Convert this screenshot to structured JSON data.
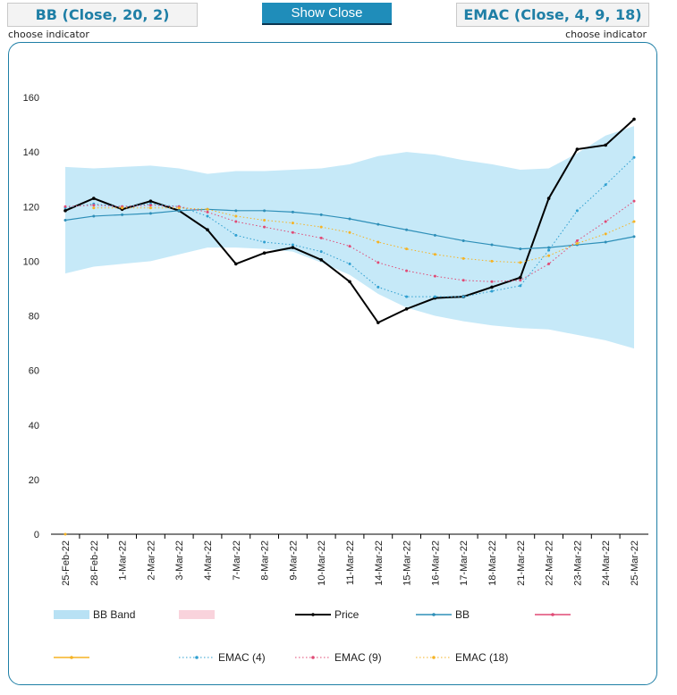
{
  "controls": {
    "left_indicator": "BB (Close, 20, 2)",
    "center_button": "Show Close",
    "right_indicator": "EMAC (Close, 4, 9, 18)",
    "left_hint": "choose indicator",
    "right_hint": "choose indicator"
  },
  "chart_data": {
    "type": "line",
    "title": "",
    "xlabel": "",
    "ylabel": "",
    "ylim": [
      0,
      160
    ],
    "yticks": [
      0,
      20,
      40,
      60,
      80,
      100,
      120,
      140,
      160
    ],
    "grid": false,
    "legend_position": "bottom",
    "categories": [
      "25-Feb-22",
      "28-Feb-22",
      "1-Mar-22",
      "2-Mar-22",
      "3-Mar-22",
      "4-Mar-22",
      "7-Mar-22",
      "8-Mar-22",
      "9-Mar-22",
      "10-Mar-22",
      "11-Mar-22",
      "14-Mar-22",
      "15-Mar-22",
      "16-Mar-22",
      "17-Mar-22",
      "18-Mar-22",
      "21-Mar-22",
      "22-Mar-22",
      "23-Mar-22",
      "24-Mar-22",
      "25-Mar-22"
    ],
    "band": {
      "name": "BB Band",
      "color": "#c6e9f8",
      "upper": [
        134.5,
        134,
        134.5,
        135,
        134,
        132,
        133,
        133,
        133.5,
        134,
        135.5,
        138.5,
        140,
        139,
        137,
        135.5,
        133.5,
        134,
        139.5,
        146,
        149.5
      ],
      "lower": [
        95.5,
        98,
        99,
        100,
        102.5,
        105,
        105,
        104.5,
        103.5,
        99.5,
        95,
        88,
        83,
        80,
        78,
        76.5,
        75.5,
        75,
        73,
        71,
        68
      ]
    },
    "series": [
      {
        "name": "Price",
        "color": "#000000",
        "style": "solid",
        "width": 2,
        "values": [
          118.5,
          123,
          119,
          122,
          118.5,
          111.5,
          99,
          103,
          105,
          100.5,
          92.5,
          77.5,
          82.5,
          86.5,
          87,
          90.5,
          94,
          123,
          141,
          142.5,
          152
        ]
      },
      {
        "name": "BB",
        "color": "#2e8fb8",
        "style": "solid",
        "width": 1.2,
        "values": [
          115,
          116.5,
          117,
          117.5,
          118.5,
          119,
          118.5,
          118.5,
          118,
          117,
          115.5,
          113.5,
          111.5,
          109.5,
          107.5,
          106,
          104.5,
          105,
          106,
          107,
          109
        ]
      },
      {
        "name": "EMAC (4)",
        "color": "#2e9fd0",
        "style": "dotted",
        "width": 1,
        "values": [
          119.5,
          121,
          120,
          121,
          120,
          116.5,
          109.5,
          107,
          106,
          103.5,
          99,
          90.5,
          87,
          87,
          87,
          89,
          91,
          104,
          118.5,
          128,
          138
        ]
      },
      {
        "name": "EMAC (9)",
        "color": "#e04a75",
        "style": "dotted",
        "width": 1,
        "values": [
          120,
          120.5,
          120,
          120.5,
          120,
          118,
          114.5,
          112.5,
          110.5,
          108.5,
          105.5,
          99.5,
          96.5,
          94.5,
          93,
          92.5,
          93,
          99,
          107.5,
          114.5,
          122
        ]
      },
      {
        "name": "EMAC (18)",
        "color": "#f5b324",
        "style": "dotted",
        "width": 1,
        "values": [
          0,
          119.5,
          119.5,
          119.5,
          119.5,
          119,
          116.5,
          115,
          114,
          112.5,
          110.5,
          107,
          104.5,
          102.5,
          101,
          100,
          99.5,
          102,
          106.5,
          110,
          114.5
        ]
      }
    ],
    "legend": [
      {
        "name": "BB Band",
        "kind": "band",
        "color": "#b8e1f4"
      },
      {
        "name": "",
        "kind": "band",
        "color": "#f9d3dc"
      },
      {
        "name": "Price",
        "kind": "line",
        "color": "#000000"
      },
      {
        "name": "BB",
        "kind": "line",
        "color": "#2e8fb8"
      },
      {
        "name": "",
        "kind": "line",
        "color": "#e04a75"
      },
      {
        "name": "",
        "kind": "line",
        "color": "#f5b324"
      },
      {
        "name": "EMAC (4)",
        "kind": "dotted",
        "color": "#2e9fd0"
      },
      {
        "name": "EMAC (9)",
        "kind": "dotted",
        "color": "#e04a75"
      },
      {
        "name": "EMAC (18)",
        "kind": "dotted",
        "color": "#f5b324"
      }
    ]
  }
}
